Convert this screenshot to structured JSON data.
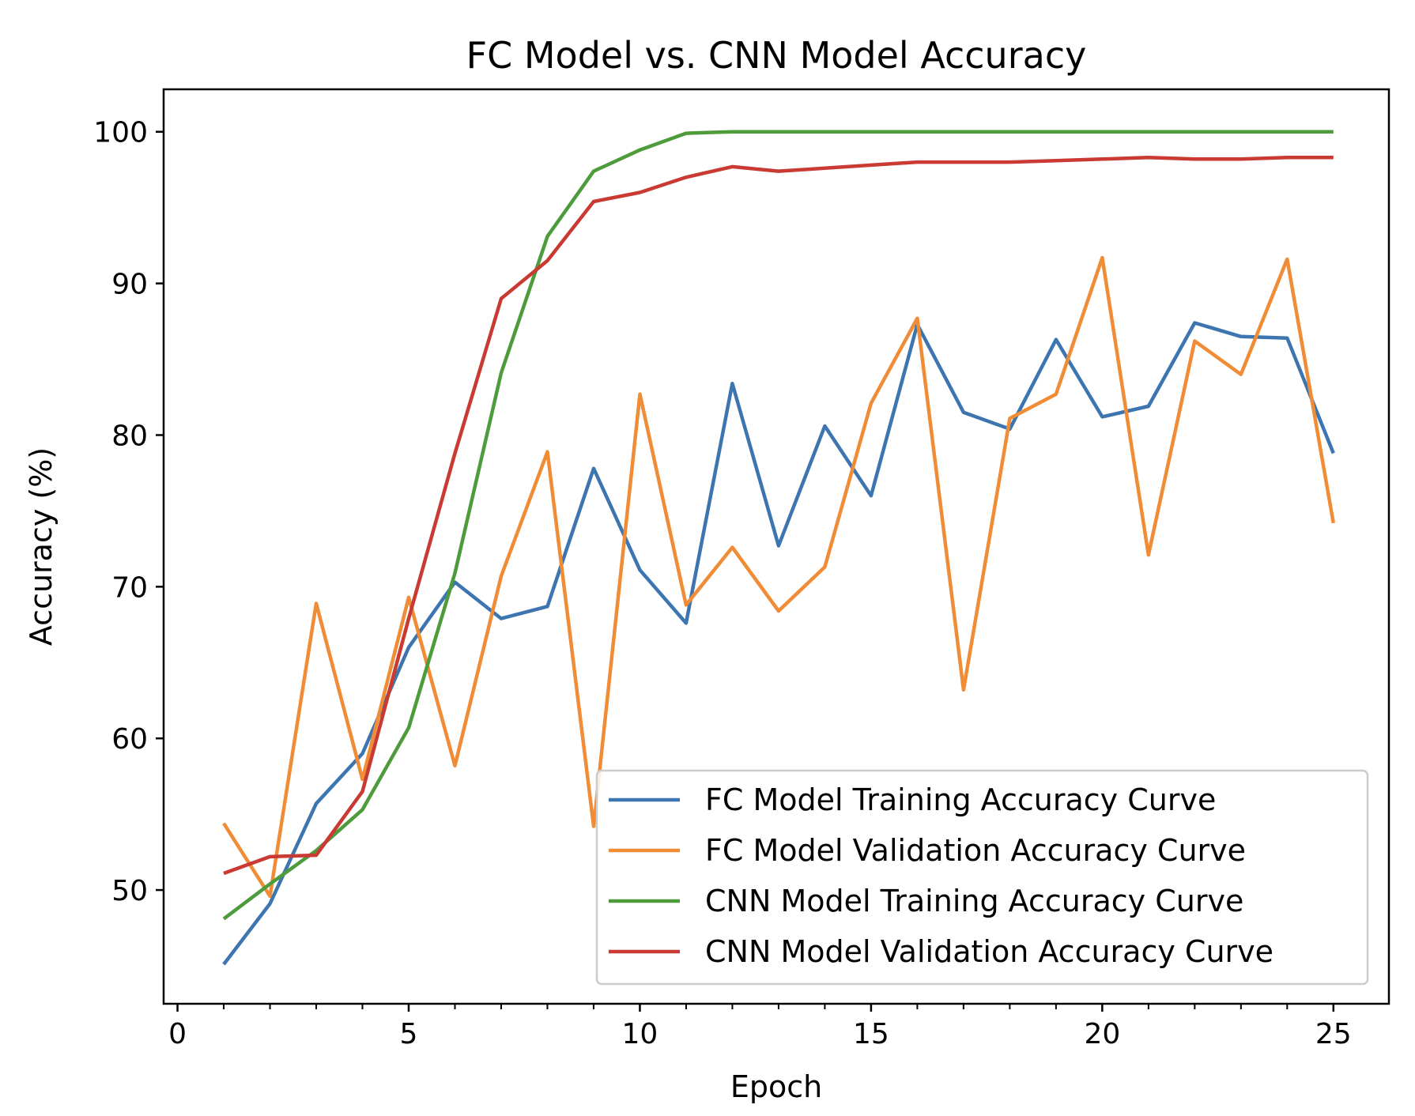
{
  "chart_data": {
    "type": "line",
    "title": "FC Model vs. CNN Model Accuracy",
    "xlabel": "Epoch",
    "ylabel": "Accuracy (%)",
    "xlim": [
      -0.3,
      26.2
    ],
    "ylim": [
      42.5,
      102.8
    ],
    "xticks": [
      0,
      5,
      10,
      15,
      20,
      25
    ],
    "minor_xticks": [
      1,
      2,
      3,
      4,
      6,
      7,
      8,
      9,
      11,
      12,
      13,
      14,
      16,
      17,
      18,
      19,
      21,
      22,
      23,
      24
    ],
    "yticks": [
      50,
      60,
      70,
      80,
      90,
      100
    ],
    "grid": false,
    "legend_position": "lower right",
    "x": [
      1,
      2,
      3,
      4,
      5,
      6,
      7,
      8,
      9,
      10,
      11,
      12,
      13,
      14,
      15,
      16,
      17,
      18,
      19,
      20,
      21,
      22,
      23,
      24,
      25
    ],
    "series": [
      {
        "name": "FC Model Training Accuracy Curve",
        "color": "#3d75b0",
        "values": [
          45.1,
          49.1,
          55.7,
          59.0,
          66.0,
          70.3,
          67.9,
          68.7,
          77.8,
          71.1,
          67.6,
          83.4,
          72.7,
          80.6,
          76.0,
          87.3,
          81.5,
          80.4,
          86.3,
          81.2,
          81.9,
          87.4,
          86.5,
          86.4,
          78.8
        ]
      },
      {
        "name": "FC Model Validation Accuracy Curve",
        "color": "#f08b36",
        "values": [
          54.4,
          49.6,
          68.9,
          57.3,
          69.3,
          58.2,
          70.7,
          78.9,
          54.2,
          82.7,
          68.8,
          72.6,
          68.4,
          71.3,
          82.1,
          87.7,
          63.2,
          81.1,
          82.7,
          91.7,
          72.1,
          86.2,
          84.0,
          91.6,
          74.2
        ]
      },
      {
        "name": "CNN Model Training Accuracy Curve",
        "color": "#4e9b3c",
        "values": [
          48.1,
          50.4,
          52.6,
          55.3,
          60.7,
          70.9,
          84.1,
          93.1,
          97.4,
          98.8,
          99.9,
          100.0,
          100.0,
          100.0,
          100.0,
          100.0,
          100.0,
          100.0,
          100.0,
          100.0,
          100.0,
          100.0,
          100.0,
          100.0,
          100.0
        ]
      },
      {
        "name": "CNN Model Validation Accuracy Curve",
        "color": "#c93a32",
        "values": [
          51.1,
          52.2,
          52.3,
          56.5,
          67.9,
          78.8,
          89.0,
          91.5,
          95.4,
          96.0,
          97.0,
          97.7,
          97.4,
          97.6,
          97.8,
          98.0,
          98.0,
          98.0,
          98.1,
          98.2,
          98.3,
          98.2,
          98.2,
          98.3,
          98.3
        ]
      }
    ]
  }
}
